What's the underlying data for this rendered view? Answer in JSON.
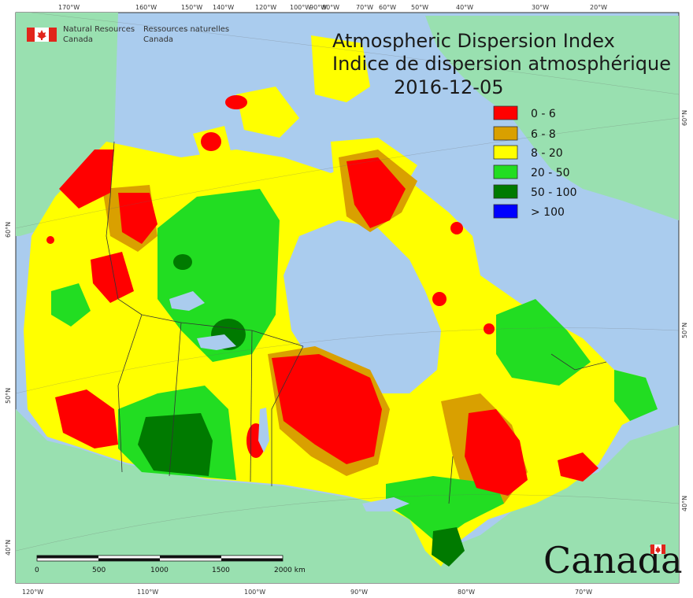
{
  "header": {
    "agency_en_1": "Natural Resources",
    "agency_en_2": "Canada",
    "agency_fr_1": "Ressources naturelles",
    "agency_fr_2": "Canada"
  },
  "map": {
    "title_en": "Atmospheric Dispersion Index",
    "title_fr": "Indice de dispersion atmosphérique",
    "date": "2016-12-05",
    "legend": [
      {
        "label": "0 - 6",
        "color": "#ff0000"
      },
      {
        "label": "6 - 8",
        "color": "#d9a000"
      },
      {
        "label": "8 - 20",
        "color": "#ffff00"
      },
      {
        "label": "20 - 50",
        "color": "#22dd22"
      },
      {
        "label": "50 - 100",
        "color": "#007a00"
      },
      {
        "label": "> 100",
        "color": "#0000ff"
      }
    ],
    "top_ticks": [
      "170°W",
      "160°W",
      "150°W",
      "140°W",
      "120°W",
      "100°W",
      "90°W",
      "80°W",
      "70°W",
      "60°W",
      "50°W",
      "40°W",
      "30°W",
      "20°W"
    ],
    "bottom_ticks": [
      "120°W",
      "110°W",
      "100°W",
      "90°W",
      "80°W",
      "70°W"
    ],
    "left_ticks": [
      "60°N",
      "50°N",
      "40°N"
    ],
    "right_ticks": [
      "60°N",
      "50°N",
      "40°N"
    ],
    "scale": {
      "labels": [
        "0",
        "500",
        "1000",
        "1500",
        "2000 km"
      ]
    },
    "wordmark": "Canada",
    "colors": {
      "water": "#aaccee",
      "foreign_land": "#99e0b0",
      "flag_red": "#e1251b"
    }
  }
}
